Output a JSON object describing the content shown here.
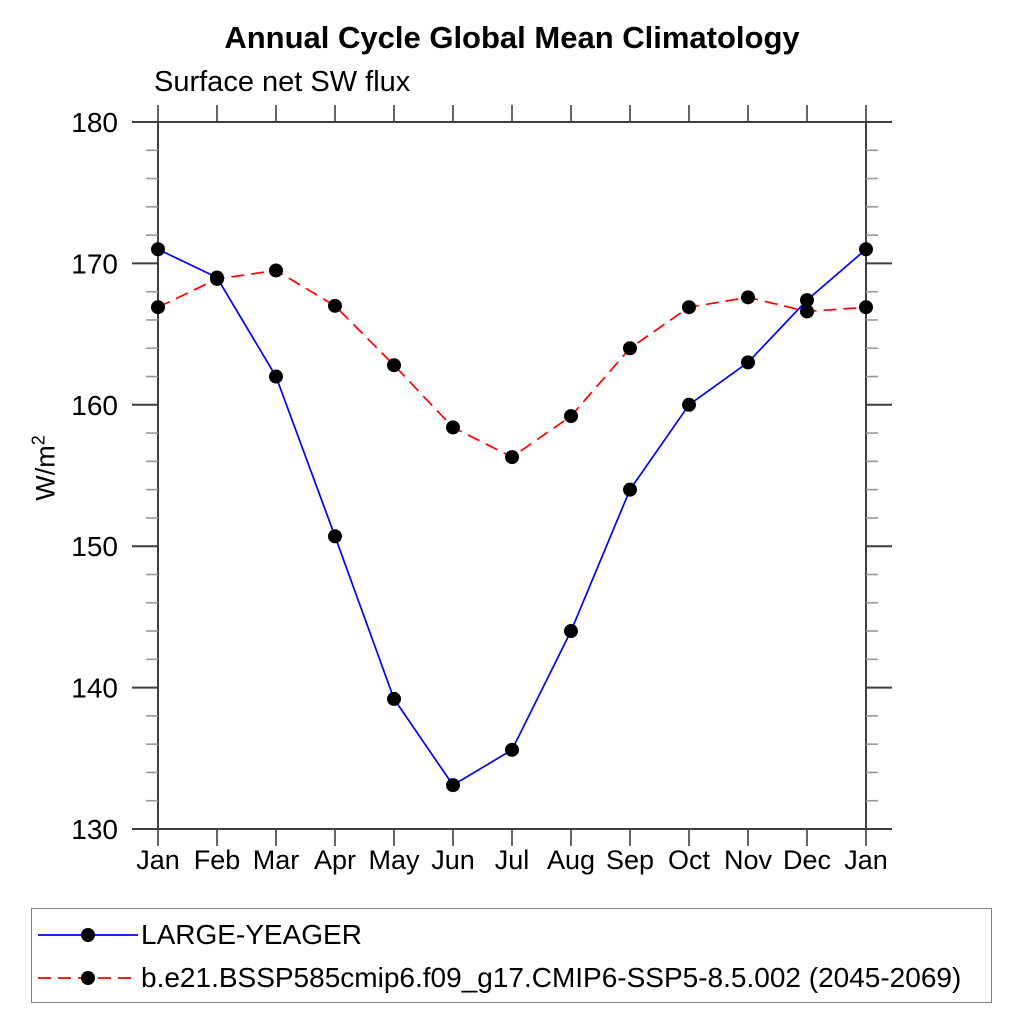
{
  "header": {
    "title": "Annual Cycle Global Mean Climatology",
    "subtitle": "Surface net SW flux"
  },
  "y_axis": {
    "label": "W/m²",
    "label_base": "W/m",
    "label_sup": "2"
  },
  "chart_data": {
    "type": "line",
    "title": "Annual Cycle Global Mean Climatology",
    "subtitle": "Surface net SW flux",
    "xlabel": "",
    "ylabel": "W/m²",
    "categories": [
      "Jan",
      "Feb",
      "Mar",
      "Apr",
      "May",
      "Jun",
      "Jul",
      "Aug",
      "Sep",
      "Oct",
      "Nov",
      "Dec",
      "Jan"
    ],
    "ylim": [
      130,
      180
    ],
    "yticks_major": [
      130,
      140,
      150,
      160,
      170,
      180
    ],
    "ytick_minor_step": 2,
    "grid": false,
    "legend_position": "bottom",
    "marker": "filled-circle",
    "marker_color": "#000000",
    "axis_color": "#3f3f3f",
    "series": [
      {
        "name": "LARGE-YEAGER",
        "color": "#0000ff",
        "line_style": "solid",
        "values": [
          171.0,
          169.0,
          162.0,
          150.7,
          139.2,
          133.1,
          135.6,
          144.0,
          154.0,
          160.0,
          163.0,
          167.4,
          171.0
        ]
      },
      {
        "name": "b.e21.BSSP585cmip6.f09_g17.CMIP6-SSP5-8.5.002 (2045-2069)",
        "color": "#ff0000",
        "line_style": "dashed",
        "values": [
          166.9,
          168.9,
          169.5,
          167.0,
          162.8,
          158.4,
          156.3,
          159.2,
          164.0,
          166.9,
          167.6,
          166.6,
          166.9
        ]
      }
    ]
  },
  "legend": {
    "items": [
      {
        "label": "LARGE-YEAGER",
        "color": "#0000ff",
        "style": "solid"
      },
      {
        "label": "b.e21.BSSP585cmip6.f09_g17.CMIP6-SSP5-8.5.002 (2045-2069)",
        "color": "#ff0000",
        "style": "dashed"
      }
    ]
  }
}
